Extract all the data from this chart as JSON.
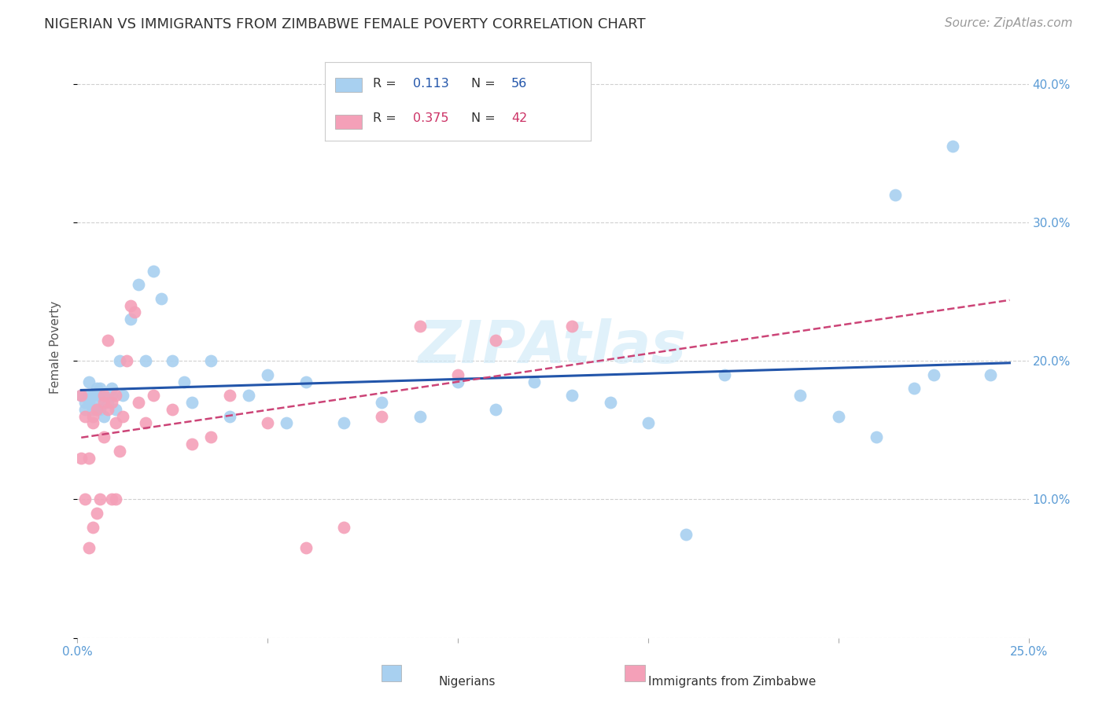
{
  "title": "NIGERIAN VS IMMIGRANTS FROM ZIMBABWE FEMALE POVERTY CORRELATION CHART",
  "source": "Source: ZipAtlas.com",
  "xlabel_nigerians": "Nigerians",
  "xlabel_zimbabwe": "Immigrants from Zimbabwe",
  "ylabel": "Female Poverty",
  "r_nigerians": 0.113,
  "n_nigerians": 56,
  "r_zimbabwe": 0.375,
  "n_zimbabwe": 42,
  "xlim": [
    0.0,
    0.25
  ],
  "ylim": [
    0.0,
    0.42
  ],
  "ytick_positions": [
    0.0,
    0.1,
    0.2,
    0.3,
    0.4
  ],
  "ytick_labels": [
    "",
    "10.0%",
    "20.0%",
    "30.0%",
    "40.0%"
  ],
  "xtick_positions": [
    0.0,
    0.05,
    0.1,
    0.15,
    0.2,
    0.25
  ],
  "xtick_labels": [
    "0.0%",
    "",
    "",
    "",
    "",
    "25.0%"
  ],
  "color_nigerians": "#a8d0f0",
  "color_zimbabwe": "#f4a0b8",
  "trendline_nigerian_color": "#2255aa",
  "trendline_zimbabwe_color": "#cc4477",
  "watermark": "ZIPAtlas",
  "nigerian_x": [
    0.001,
    0.002,
    0.002,
    0.003,
    0.003,
    0.003,
    0.004,
    0.004,
    0.005,
    0.005,
    0.005,
    0.006,
    0.006,
    0.006,
    0.007,
    0.007,
    0.008,
    0.008,
    0.009,
    0.009,
    0.01,
    0.011,
    0.012,
    0.014,
    0.016,
    0.018,
    0.02,
    0.022,
    0.025,
    0.028,
    0.03,
    0.035,
    0.04,
    0.045,
    0.05,
    0.055,
    0.06,
    0.07,
    0.08,
    0.09,
    0.1,
    0.11,
    0.12,
    0.13,
    0.14,
    0.15,
    0.16,
    0.17,
    0.19,
    0.2,
    0.21,
    0.215,
    0.22,
    0.225,
    0.23,
    0.24
  ],
  "nigerian_y": [
    0.175,
    0.17,
    0.165,
    0.175,
    0.185,
    0.17,
    0.165,
    0.175,
    0.165,
    0.17,
    0.18,
    0.165,
    0.175,
    0.18,
    0.16,
    0.175,
    0.17,
    0.175,
    0.18,
    0.175,
    0.165,
    0.2,
    0.175,
    0.23,
    0.255,
    0.2,
    0.265,
    0.245,
    0.2,
    0.185,
    0.17,
    0.2,
    0.16,
    0.175,
    0.19,
    0.155,
    0.185,
    0.155,
    0.17,
    0.16,
    0.185,
    0.165,
    0.185,
    0.175,
    0.17,
    0.155,
    0.075,
    0.19,
    0.175,
    0.16,
    0.145,
    0.32,
    0.18,
    0.19,
    0.355,
    0.19
  ],
  "zimbabwe_x": [
    0.001,
    0.001,
    0.002,
    0.002,
    0.003,
    0.003,
    0.004,
    0.004,
    0.004,
    0.005,
    0.005,
    0.006,
    0.007,
    0.007,
    0.007,
    0.008,
    0.008,
    0.009,
    0.009,
    0.01,
    0.01,
    0.01,
    0.011,
    0.012,
    0.013,
    0.014,
    0.015,
    0.016,
    0.018,
    0.02,
    0.025,
    0.03,
    0.035,
    0.04,
    0.05,
    0.06,
    0.07,
    0.08,
    0.09,
    0.1,
    0.11,
    0.13
  ],
  "zimbabwe_y": [
    0.175,
    0.13,
    0.16,
    0.1,
    0.13,
    0.065,
    0.155,
    0.16,
    0.08,
    0.09,
    0.165,
    0.1,
    0.175,
    0.17,
    0.145,
    0.165,
    0.215,
    0.1,
    0.17,
    0.155,
    0.175,
    0.1,
    0.135,
    0.16,
    0.2,
    0.24,
    0.235,
    0.17,
    0.155,
    0.175,
    0.165,
    0.14,
    0.145,
    0.175,
    0.155,
    0.065,
    0.08,
    0.16,
    0.225,
    0.19,
    0.215,
    0.225
  ],
  "background_color": "#ffffff",
  "grid_color": "#d0d0d0",
  "axis_label_color": "#5a9bd5",
  "title_color": "#333333",
  "ylabel_color": "#555555",
  "title_fontsize": 13,
  "source_fontsize": 11,
  "axis_tick_fontsize": 11,
  "legend_fontsize": 12
}
